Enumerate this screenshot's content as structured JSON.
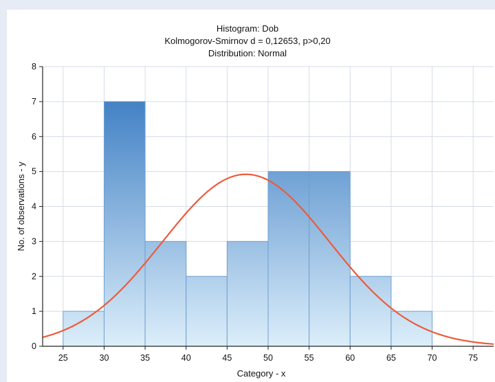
{
  "chart_data": {
    "type": "bar",
    "title": "Histogram: Dob",
    "subtitle": "Kolmogorov-Smirnov d = 0,12653, p>0,20",
    "distribution_label": "Distribution: Normal",
    "xlabel": "Category - x",
    "ylabel": "No. of observations - y",
    "bins": [
      {
        "from": 25,
        "to": 30,
        "count": 1
      },
      {
        "from": 30,
        "to": 35,
        "count": 7
      },
      {
        "from": 35,
        "to": 40,
        "count": 3
      },
      {
        "from": 40,
        "to": 45,
        "count": 2
      },
      {
        "from": 45,
        "to": 50,
        "count": 3
      },
      {
        "from": 50,
        "to": 55,
        "count": 5
      },
      {
        "from": 55,
        "to": 60,
        "count": 5
      },
      {
        "from": 60,
        "to": 65,
        "count": 2
      },
      {
        "from": 65,
        "to": 70,
        "count": 1
      }
    ],
    "xlim": [
      22.5,
      77.5
    ],
    "ylim": [
      0,
      8
    ],
    "xticks": [
      "25",
      "30",
      "35",
      "40",
      "45",
      "50",
      "55",
      "60",
      "65",
      "70",
      "75"
    ],
    "yticks": [
      "0",
      "1",
      "2",
      "3",
      "4",
      "5",
      "6",
      "7",
      "8"
    ],
    "fitted_curve": {
      "type": "normal",
      "mean": 47.3,
      "sd": 10.2,
      "peak": 4.92,
      "color": "#ee5a3a"
    },
    "bar_gradient_top": "#3f7fc4",
    "bar_gradient_bottom": "#dceefa",
    "bar_stroke": "#6f9fcf",
    "grid": true
  }
}
